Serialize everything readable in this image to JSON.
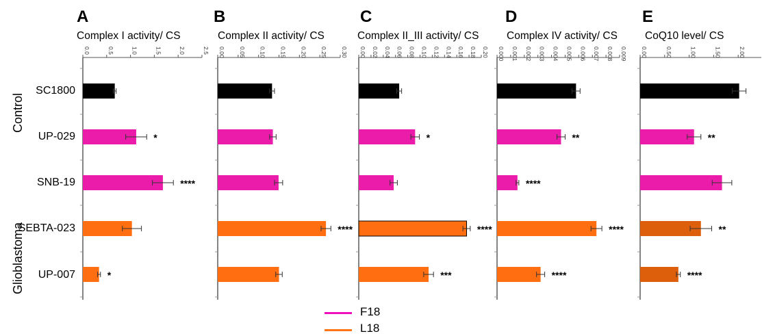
{
  "rows": [
    "SC1800",
    "UP-029",
    "SNB-19",
    "SEBTA-023",
    "UP-007"
  ],
  "groups": {
    "control": "Control",
    "glioblastoma": "Glioblastoma"
  },
  "legend": [
    {
      "label": "F18",
      "color": "#ee11bb"
    },
    {
      "label": "L18",
      "color": "#ff7518"
    }
  ],
  "colors": {
    "control": "#000000",
    "f18": "#ec1caa",
    "l18": "#ff6f11",
    "l18_dark": "#dd5f0c"
  },
  "chart_data": [
    {
      "type": "bar",
      "letter": "A",
      "title": "Complex I activity/ CS",
      "ticks": [
        "0.0",
        "0.5",
        "1.0",
        "1.5",
        "2.0",
        "2.5"
      ],
      "xlim": [
        0,
        2.5
      ],
      "categories": [
        "SC1800",
        "UP-029",
        "SNB-19",
        "SEBTA-023",
        "UP-007"
      ],
      "values": [
        0.67,
        1.12,
        1.68,
        1.03,
        0.34
      ],
      "errors": [
        0.03,
        0.22,
        0.22,
        0.2,
        0.03
      ],
      "colors": [
        "control",
        "f18",
        "f18",
        "l18",
        "l18"
      ],
      "significance": [
        "",
        "*",
        "****",
        "",
        "*"
      ]
    },
    {
      "type": "bar",
      "letter": "B",
      "title": "Complex II activity/ CS",
      "ticks": [
        "0.00",
        "0.05",
        "0.10",
        "0.15",
        "0.20",
        "0.25",
        "0.30"
      ],
      "xlim": [
        0,
        0.3
      ],
      "categories": [
        "SC1800",
        "UP-029",
        "SNB-19",
        "SEBTA-023",
        "UP-007"
      ],
      "values": [
        0.133,
        0.135,
        0.149,
        0.265,
        0.15
      ],
      "errors": [
        0.006,
        0.008,
        0.01,
        0.012,
        0.008
      ],
      "colors": [
        "control",
        "f18",
        "f18",
        "l18",
        "l18"
      ],
      "significance": [
        "",
        "",
        "",
        "****",
        ""
      ]
    },
    {
      "type": "bar",
      "letter": "C",
      "title": "Complex II_III activity/ CS",
      "ticks": [
        "0.00",
        "0.02",
        "0.04",
        "0.06",
        "0.08",
        "0.10",
        "0.12",
        "0.14",
        "0.16",
        "0.18",
        "0.20"
      ],
      "xlim": [
        0,
        0.2
      ],
      "categories": [
        "SC1800",
        "UP-029",
        "SNB-19",
        "SEBTA-023",
        "UP-007"
      ],
      "values": [
        0.066,
        0.092,
        0.057,
        0.176,
        0.114
      ],
      "errors": [
        0.004,
        0.007,
        0.006,
        0.006,
        0.008
      ],
      "colors": [
        "control",
        "f18",
        "f18",
        "l18",
        "l18"
      ],
      "significance": [
        "",
        "*",
        "",
        "****",
        "***"
      ]
    },
    {
      "type": "bar",
      "letter": "D",
      "title": "Complex IV activity/ CS",
      "ticks": [
        "0.000",
        "0.001",
        "0.002",
        "0.003",
        "0.004",
        "0.005",
        "0.006",
        "0.007",
        "0.008",
        "0.009"
      ],
      "xlim": [
        0,
        0.009
      ],
      "categories": [
        "SC1800",
        "UP-029",
        "SNB-19",
        "SEBTA-023",
        "UP-007"
      ],
      "values": [
        0.0058,
        0.0047,
        0.0015,
        0.0073,
        0.0032
      ],
      "errors": [
        0.0003,
        0.0003,
        0.0001,
        0.0004,
        0.0003
      ],
      "colors": [
        "control",
        "f18",
        "f18",
        "l18",
        "l18"
      ],
      "significance": [
        "",
        "**",
        "****",
        "****",
        "****"
      ]
    },
    {
      "type": "bar",
      "letter": "E",
      "title": "CoQ10 level/ CS",
      "ticks": [
        "0.00",
        "0.50",
        "1.00",
        "1.50",
        "2.00"
      ],
      "xlim": [
        0,
        2.5
      ],
      "categories": [
        "SC1800",
        "UP-029",
        "SNB-19",
        "SEBTA-023",
        "UP-007"
      ],
      "values": [
        2.02,
        1.1,
        1.67,
        1.24,
        0.78
      ],
      "errors": [
        0.14,
        0.14,
        0.2,
        0.22,
        0.04
      ],
      "colors": [
        "control",
        "f18",
        "f18",
        "l18_dark",
        "l18_dark"
      ],
      "significance": [
        "",
        "**",
        "",
        "**",
        "****"
      ]
    }
  ]
}
